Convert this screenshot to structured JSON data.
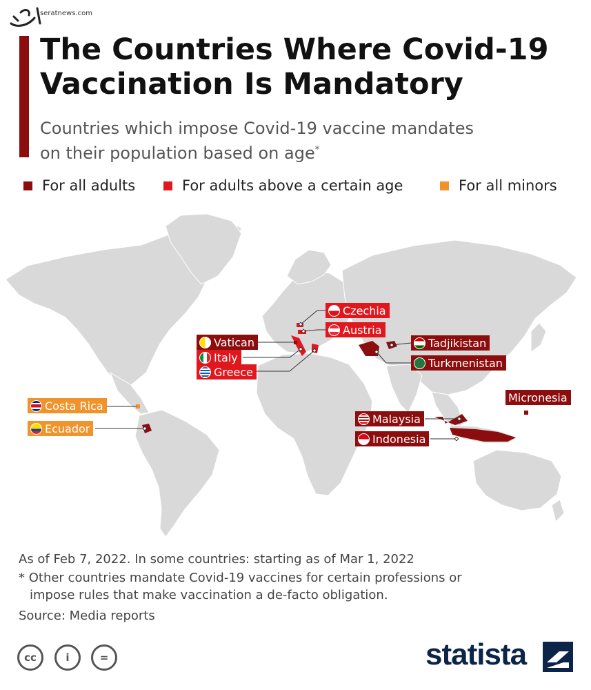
{
  "header": {
    "title_line1": "The Countries Where Covid-19",
    "title_line2": "Vaccination Is Mandatory",
    "subtitle_line1": "Countries which impose Covid-19 vaccine mandates",
    "subtitle_line2": "on their population based on age",
    "subtitle_mark": "*"
  },
  "watermark": {
    "site": "seratnews.com"
  },
  "legend": [
    {
      "label": "For all adults",
      "color": "#8c0d0d"
    },
    {
      "label": "For adults above a certain age",
      "color": "#e0181e"
    },
    {
      "label": "For all minors",
      "color": "#f0932b"
    }
  ],
  "countries": {
    "czechia": {
      "name": "Czechia",
      "category": "For adults above a certain age"
    },
    "austria": {
      "name": "Austria",
      "category": "For adults above a certain age"
    },
    "vatican": {
      "name": "Vatican",
      "category": "For all adults"
    },
    "italy": {
      "name": "Italy",
      "category": "For adults above a certain age"
    },
    "greece": {
      "name": "Greece",
      "category": "For adults above a certain age"
    },
    "tadjikistan": {
      "name": "Tadjikistan",
      "category": "For all adults"
    },
    "turkmenistan": {
      "name": "Turkmenistan",
      "category": "For all adults"
    },
    "micronesia": {
      "name": "Micronesia",
      "category": "For all adults"
    },
    "malaysia": {
      "name": "Malaysia",
      "category": "For all adults"
    },
    "indonesia": {
      "name": "Indonesia",
      "category": "For all adults"
    },
    "costa_rica": {
      "name": "Costa Rica",
      "category": "For all minors"
    },
    "ecuador": {
      "name": "Ecuador",
      "category": "For all adults"
    }
  },
  "footer": {
    "note1": "As of Feb 7, 2022. In some countries: starting as of Mar 1, 2022",
    "note2": "* Other countries mandate Covid-19 vaccines for certain professions or",
    "note3": "impose rules that make vaccination a de-facto obligation.",
    "source": "Source: Media reports",
    "brand": "statista",
    "cc_text": "cc",
    "by_text": "i",
    "nd_text": "="
  },
  "colors": {
    "all_adults": "#8c0d0d",
    "above_age": "#e0181e",
    "minors": "#f0932b",
    "land": "#d9d9d9",
    "brand": "#0b2447"
  },
  "icons": [
    "watermark-logo",
    "creative-commons-icon",
    "attribution-icon",
    "no-derivatives-icon",
    "statista-logo-icon"
  ]
}
